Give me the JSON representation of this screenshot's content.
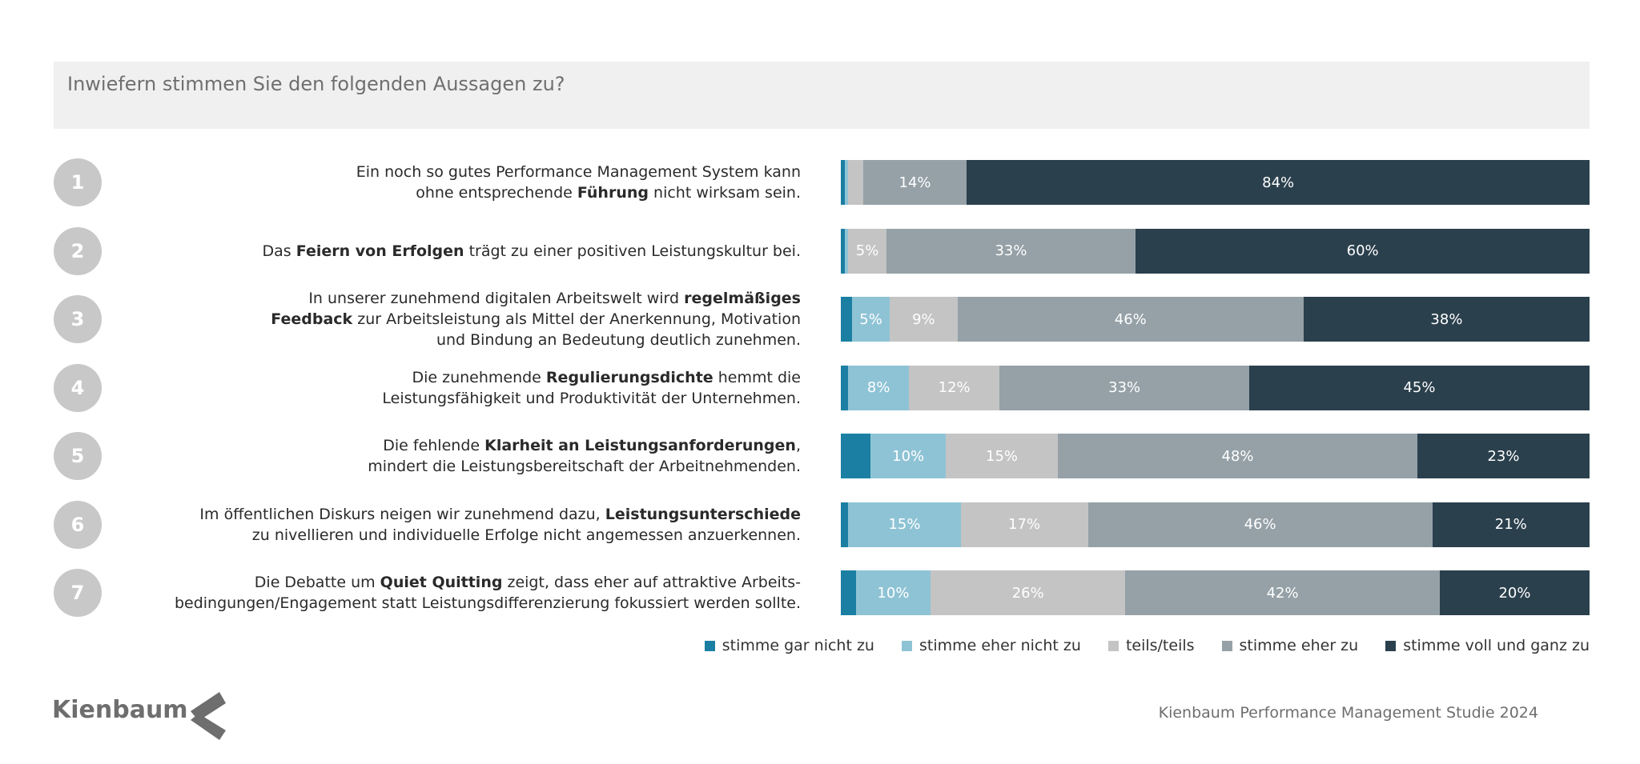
{
  "question": "Inwiefern stimmen Sie den folgenden Aussagen zu?",
  "colors": [
    "#1b7fa3",
    "#8ec3d5",
    "#c4c4c4",
    "#95a1a7",
    "#2b404d"
  ],
  "chart_data": {
    "type": "bar",
    "orientation": "horizontal",
    "stacked": true,
    "unit": "%",
    "categories": [
      "1",
      "2",
      "3",
      "4",
      "5",
      "6",
      "7"
    ],
    "series": [
      {
        "name": "stimme gar nicht zu",
        "values": [
          0.5,
          0.5,
          1.5,
          1,
          4,
          1,
          2
        ]
      },
      {
        "name": "stimme eher nicht zu",
        "values": [
          0.5,
          0.5,
          5,
          8,
          10,
          15,
          10
        ]
      },
      {
        "name": "teils/teils",
        "values": [
          2,
          5,
          9,
          12,
          15,
          17,
          26
        ]
      },
      {
        "name": "stimme eher zu",
        "values": [
          14,
          33,
          46,
          33,
          48,
          46,
          42
        ]
      },
      {
        "name": "stimme voll und ganz zu",
        "values": [
          84,
          60,
          38,
          45,
          23,
          21,
          20
        ]
      }
    ],
    "labels": [
      [
        "",
        "",
        "",
        "14%",
        "84%"
      ],
      [
        "",
        "",
        "5%",
        "33%",
        "60%"
      ],
      [
        "",
        "5%",
        "9%",
        "46%",
        "38%"
      ],
      [
        "",
        "8%",
        "12%",
        "33%",
        "45%"
      ],
      [
        "",
        "10%",
        "15%",
        "48%",
        "23%"
      ],
      [
        "",
        "15%",
        "17%",
        "46%",
        "21%"
      ],
      [
        "",
        "10%",
        "26%",
        "42%",
        "20%"
      ]
    ],
    "legend_position": "bottom-right"
  },
  "statements": [
    {
      "number": "1",
      "lines": [
        [
          {
            "t": "Ein noch so gutes Performance Management System kann"
          }
        ],
        [
          {
            "t": "ohne entsprechende "
          },
          {
            "t": "Führung",
            "b": true
          },
          {
            "t": " nicht wirksam sein."
          }
        ]
      ]
    },
    {
      "number": "2",
      "lines": [
        [
          {
            "t": "Das "
          },
          {
            "t": "Feiern von Erfolgen",
            "b": true
          },
          {
            "t": " trägt zu einer positiven Leistungskultur bei."
          }
        ]
      ]
    },
    {
      "number": "3",
      "lines": [
        [
          {
            "t": "In unserer zunehmend digitalen Arbeitswelt wird "
          },
          {
            "t": "regelmäßiges",
            "b": true
          }
        ],
        [
          {
            "t": "Feedback",
            "b": true
          },
          {
            "t": " zur Arbeitsleistung als Mittel der Anerkennung, Motivation"
          }
        ],
        [
          {
            "t": "und Bindung an Bedeutung deutlich zunehmen."
          }
        ]
      ]
    },
    {
      "number": "4",
      "lines": [
        [
          {
            "t": "Die zunehmende "
          },
          {
            "t": "Regulierungsdichte",
            "b": true
          },
          {
            "t": " hemmt die"
          }
        ],
        [
          {
            "t": "Leistungsfähigkeit und Produktivität der Unternehmen."
          }
        ]
      ]
    },
    {
      "number": "5",
      "lines": [
        [
          {
            "t": "Die fehlende "
          },
          {
            "t": "Klarheit an Leistungsanforderungen",
            "b": true
          },
          {
            "t": ","
          }
        ],
        [
          {
            "t": "mindert die Leistungsbereitschaft der Arbeitnehmenden."
          }
        ]
      ]
    },
    {
      "number": "6",
      "lines": [
        [
          {
            "t": "Im öffentlichen Diskurs neigen wir zunehmend dazu, "
          },
          {
            "t": "Leistungsunterschiede",
            "b": true
          }
        ],
        [
          {
            "t": "zu nivellieren und individuelle Erfolge nicht angemessen anzuerkennen."
          }
        ]
      ]
    },
    {
      "number": "7",
      "lines": [
        [
          {
            "t": "Die Debatte um "
          },
          {
            "t": "Quiet Quitting",
            "b": true
          },
          {
            "t": " zeigt, dass eher auf attraktive Arbeits-"
          }
        ],
        [
          {
            "t": "bedingungen/Engagement statt Leistungsdifferenzierung fokussiert werden sollte."
          }
        ]
      ]
    }
  ],
  "brand": "Kienbaum",
  "footer": "Kienbaum Performance Management Studie 2024"
}
